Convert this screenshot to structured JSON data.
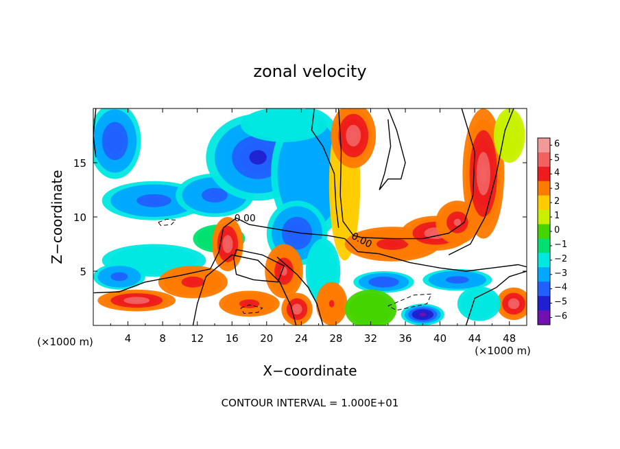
{
  "chart_data": {
    "type": "heatmap",
    "title": "zonal velocity",
    "xlabel": "X−coordinate",
    "ylabel": "Z−coordinate",
    "x_unit_left": "(×1000 m)",
    "x_unit_right": "(×1000 m)",
    "xlim": [
      0,
      50
    ],
    "ylim": [
      0,
      20
    ],
    "x_ticks": [
      4,
      8,
      12,
      16,
      20,
      24,
      28,
      32,
      36,
      40,
      44,
      48
    ],
    "y_ticks": [
      5,
      10,
      15
    ],
    "colorbar": {
      "levels": [
        6,
        5,
        4,
        3,
        2,
        1,
        0,
        -1,
        -2,
        -3,
        -4,
        -5,
        -6
      ],
      "labels": [
        "6",
        "5",
        "4",
        "3",
        "2",
        "1",
        "0",
        "−1",
        "−2",
        "−3",
        "−4",
        "−5",
        "−6"
      ],
      "colors": [
        "#f29a9a",
        "#f26060",
        "#ee1c1c",
        "#ff7a00",
        "#ffcc00",
        "#c8f000",
        "#44d400",
        "#00e070",
        "#00e8e0",
        "#00a8ff",
        "#2060ff",
        "#2020d0",
        "#7010b0"
      ]
    },
    "contour_label": "0.00",
    "contour_interval_text": "CONTOUR INTERVAL = 1.000E+01",
    "field_blobs": [
      {
        "x": 2.5,
        "z": 17.0,
        "rx": 3.0,
        "rz": 3.5,
        "v": -4.5
      },
      {
        "x": 7.0,
        "z": 11.5,
        "rx": 6.0,
        "rz": 1.8,
        "v": -4.0
      },
      {
        "x": 14.0,
        "z": 12.0,
        "rx": 4.5,
        "rz": 2.0,
        "v": -4.0
      },
      {
        "x": 19.0,
        "z": 15.5,
        "rx": 6.0,
        "rz": 4.0,
        "v": -5.0
      },
      {
        "x": 25.0,
        "z": 14.0,
        "rx": 4.5,
        "rz": 6.0,
        "v": -3.5
      },
      {
        "x": 23.5,
        "z": 8.5,
        "rx": 3.5,
        "rz": 3.0,
        "v": -4.5
      },
      {
        "x": 26.5,
        "z": 5.0,
        "rx": 2.0,
        "rz": 3.0,
        "v": -2.0
      },
      {
        "x": 22.0,
        "z": 18.5,
        "rx": 5.0,
        "rz": 1.6,
        "v": -2.0
      },
      {
        "x": 7.0,
        "z": 6.0,
        "rx": 6.0,
        "rz": 1.5,
        "v": -2.5
      },
      {
        "x": 3.0,
        "z": 4.5,
        "rx": 3.0,
        "rz": 1.2,
        "v": -4.0
      },
      {
        "x": 14.5,
        "z": 8.0,
        "rx": 3.0,
        "rz": 1.3,
        "v": -1.5
      },
      {
        "x": 29.0,
        "z": 13.0,
        "rx": 1.8,
        "rz": 7.0,
        "v": 2.0
      },
      {
        "x": 30.0,
        "z": 17.5,
        "rx": 2.6,
        "rz": 3.0,
        "v": 5.0
      },
      {
        "x": 34.5,
        "z": 7.5,
        "rx": 5.5,
        "rz": 1.6,
        "v": 4.0
      },
      {
        "x": 39.5,
        "z": 8.5,
        "rx": 4.0,
        "rz": 1.6,
        "v": 5.0
      },
      {
        "x": 45.0,
        "z": 14.0,
        "rx": 2.4,
        "rz": 6.0,
        "v": 5.0
      },
      {
        "x": 42.0,
        "z": 9.5,
        "rx": 2.5,
        "rz": 2.0,
        "v": 4.5
      },
      {
        "x": 48.0,
        "z": 17.5,
        "rx": 1.8,
        "rz": 2.5,
        "v": 1.0
      },
      {
        "x": 15.5,
        "z": 7.5,
        "rx": 1.8,
        "rz": 2.5,
        "v": 5.0
      },
      {
        "x": 22.0,
        "z": 5.0,
        "rx": 2.2,
        "rz": 2.5,
        "v": 4.5
      },
      {
        "x": 5.0,
        "z": 2.3,
        "rx": 4.5,
        "rz": 1.0,
        "v": 5.0
      },
      {
        "x": 11.5,
        "z": 4.0,
        "rx": 4.0,
        "rz": 1.5,
        "v": 4.0
      },
      {
        "x": 18.0,
        "z": 2.0,
        "rx": 3.5,
        "rz": 1.2,
        "v": 4.0
      },
      {
        "x": 23.5,
        "z": 1.5,
        "rx": 1.8,
        "rz": 1.5,
        "v": 5.0
      },
      {
        "x": 27.5,
        "z": 2.0,
        "rx": 1.8,
        "rz": 2.0,
        "v": 3.5
      },
      {
        "x": 48.5,
        "z": 2.0,
        "rx": 2.0,
        "rz": 1.5,
        "v": 5.0
      },
      {
        "x": 33.5,
        "z": 4.0,
        "rx": 3.5,
        "rz": 1.0,
        "v": -4.5
      },
      {
        "x": 42.0,
        "z": 4.2,
        "rx": 4.0,
        "rz": 1.0,
        "v": -4.0
      },
      {
        "x": 44.5,
        "z": 2.0,
        "rx": 2.5,
        "rz": 1.6,
        "v": -2.0
      },
      {
        "x": 32.0,
        "z": 1.5,
        "rx": 3.0,
        "rz": 1.8,
        "v": 0.0
      },
      {
        "x": 38.0,
        "z": 1.0,
        "rx": 2.5,
        "rz": 1.0,
        "v": -6.0
      }
    ],
    "zero_contours": [
      [
        [
          0.3,
          20.0
        ],
        [
          0.0,
          17.5
        ],
        [
          0.3,
          15.5
        ]
      ],
      [
        [
          0.0,
          3.0
        ],
        [
          3.0,
          3.1
        ],
        [
          6.0,
          4.0
        ],
        [
          10.0,
          4.6
        ],
        [
          13.5,
          5.2
        ],
        [
          14.5,
          6.8
        ],
        [
          15.0,
          9.0
        ],
        [
          16.5,
          9.9
        ],
        [
          18.0,
          9.3
        ],
        [
          21.0,
          8.9
        ],
        [
          24.0,
          8.5
        ],
        [
          27.0,
          8.3
        ],
        [
          29.0,
          8.0
        ],
        [
          30.5,
          6.8
        ],
        [
          33.0,
          6.6
        ],
        [
          36.5,
          5.8
        ],
        [
          40.0,
          5.3
        ],
        [
          43.0,
          5.0
        ],
        [
          46.0,
          5.3
        ],
        [
          49.0,
          5.6
        ],
        [
          50.0,
          5.4
        ]
      ],
      [
        [
          11.5,
          0.0
        ],
        [
          12.0,
          2.0
        ],
        [
          13.0,
          4.5
        ],
        [
          16.0,
          6.5
        ],
        [
          19.0,
          6.0
        ],
        [
          21.5,
          4.0
        ],
        [
          22.8,
          1.8
        ],
        [
          23.4,
          0.0
        ]
      ],
      [
        [
          25.5,
          20.0
        ],
        [
          25.2,
          18.0
        ],
        [
          26.5,
          16.5
        ],
        [
          27.8,
          14.0
        ],
        [
          28.0,
          11.0
        ],
        [
          28.3,
          9.0
        ]
      ],
      [
        [
          26.5,
          0.0
        ],
        [
          25.8,
          2.0
        ],
        [
          24.8,
          3.5
        ],
        [
          23.5,
          4.7
        ],
        [
          21.2,
          6.3
        ]
      ],
      [
        [
          42.5,
          20.0
        ],
        [
          44.0,
          16.0
        ],
        [
          43.8,
          12.0
        ],
        [
          42.8,
          9.5
        ],
        [
          41.0,
          8.5
        ],
        [
          38.0,
          8.0
        ],
        [
          34.5,
          8.0
        ],
        [
          31.0,
          8.1
        ],
        [
          30.0,
          8.3
        ],
        [
          28.8,
          9.6
        ],
        [
          28.5,
          12.0
        ],
        [
          28.6,
          16.0
        ],
        [
          28.3,
          20.0
        ]
      ],
      [
        [
          48.5,
          20.0
        ],
        [
          47.5,
          18.0
        ],
        [
          46.5,
          14.0
        ],
        [
          45.2,
          10.0
        ],
        [
          43.5,
          7.5
        ],
        [
          41.0,
          6.5
        ]
      ],
      [
        [
          43.0,
          0.0
        ],
        [
          44.0,
          2.5
        ],
        [
          46.5,
          3.5
        ],
        [
          48.0,
          4.5
        ],
        [
          50.0,
          5.0
        ]
      ],
      [
        [
          34.0,
          20.0
        ],
        [
          35.0,
          18.0
        ],
        [
          36.0,
          15.0
        ],
        [
          35.5,
          13.5
        ],
        [
          34.0,
          13.5
        ],
        [
          33.0,
          12.5
        ],
        [
          33.6,
          14.0
        ],
        [
          34.3,
          16.5
        ],
        [
          34.0,
          19.0
        ]
      ],
      [
        [
          16.5,
          7.0
        ],
        [
          19.5,
          6.5
        ],
        [
          22.0,
          5.5
        ],
        [
          21.3,
          4.0
        ],
        [
          18.5,
          4.2
        ],
        [
          16.5,
          4.7
        ],
        [
          16.2,
          6.2
        ],
        [
          16.5,
          7.0
        ]
      ]
    ],
    "dashed_contours": [
      [
        [
          7.5,
          9.5
        ],
        [
          8.5,
          9.8
        ],
        [
          9.5,
          9.7
        ],
        [
          9.0,
          9.3
        ],
        [
          7.8,
          9.2
        ],
        [
          7.5,
          9.5
        ]
      ],
      [
        [
          17.0,
          1.6
        ],
        [
          18.0,
          1.9
        ],
        [
          19.5,
          1.6
        ],
        [
          19.0,
          1.2
        ],
        [
          17.4,
          1.1
        ],
        [
          17.0,
          1.6
        ]
      ],
      [
        [
          34.0,
          1.8
        ],
        [
          37.0,
          2.8
        ],
        [
          39.0,
          2.9
        ],
        [
          38.5,
          2.0
        ],
        [
          35.0,
          1.4
        ],
        [
          34.0,
          1.8
        ]
      ]
    ],
    "label_positions": [
      {
        "x": 17.5,
        "z": 9.6
      },
      {
        "x": 30.8,
        "z": 7.6
      }
    ]
  }
}
